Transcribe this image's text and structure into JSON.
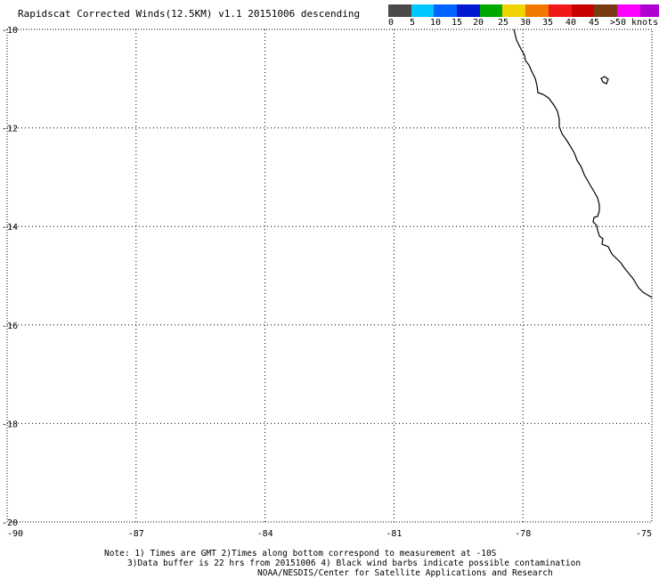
{
  "title": "Rapidscat Corrected Winds(12.5KM) v1.1 20151006 descending",
  "colorbar": {
    "colors": [
      "#4a4a4a",
      "#00c8ff",
      "#0064ff",
      "#0018d0",
      "#00a800",
      "#f0d400",
      "#f07800",
      "#f01818",
      "#c80000",
      "#7a3a12",
      "#ff00ff",
      "#b000d0",
      "#50009a"
    ],
    "labels": [
      "0",
      "5",
      "10",
      "15",
      "20",
      "25",
      "30",
      "35",
      "40",
      "45",
      ">50 knots"
    ]
  },
  "map": {
    "lon_range": [
      -90,
      -75
    ],
    "lat_range": [
      -20,
      -10
    ],
    "lon_ticks": [
      "-90",
      "-87",
      "-84",
      "-81",
      "-78",
      "-75"
    ],
    "lat_ticks": [
      "-10",
      "-12",
      "-14",
      "-16",
      "-18",
      "-20"
    ],
    "coastline_color": "#000000",
    "grid": "dotted"
  },
  "notes": {
    "line1": "Note: 1) Times are GMT 2)Times along bottom correspond to measurement at -10S",
    "line2": "3)Data buffer is 22 hrs from 20151006 4) Black wind barbs indicate possible contamination",
    "line3": "NOAA/NESDIS/Center for Satellite Applications and Research"
  }
}
